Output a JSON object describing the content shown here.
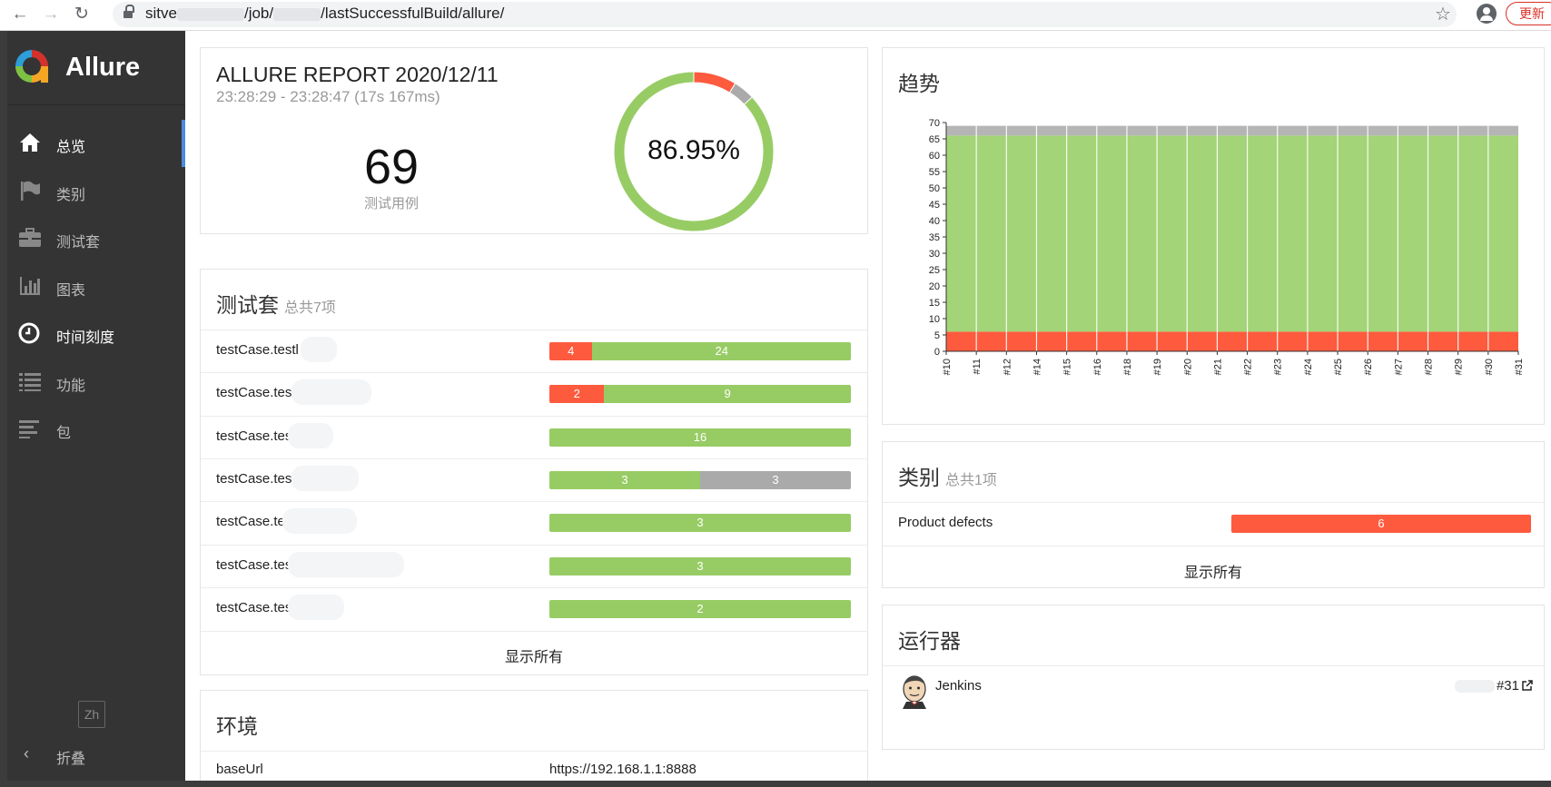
{
  "browser": {
    "url_prefix": "sitve",
    "url_middle": "/job/",
    "url_suffix": "/lastSuccessfulBuild/allure/",
    "update_label": "更新"
  },
  "brand": {
    "name": "Allure"
  },
  "nav": [
    {
      "label": "总览",
      "icon": "home-icon"
    },
    {
      "label": "类别",
      "icon": "flag-icon"
    },
    {
      "label": "测试套",
      "icon": "briefcase-icon"
    },
    {
      "label": "图表",
      "icon": "bar-chart-icon"
    },
    {
      "label": "时间刻度",
      "icon": "clock-icon"
    },
    {
      "label": "功能",
      "icon": "list-icon"
    },
    {
      "label": "包",
      "icon": "align-left-icon"
    }
  ],
  "language": "Zh",
  "collapse_label": "折叠",
  "summary": {
    "title": "ALLURE REPORT 2020/12/11",
    "time": "23:28:29 - 23:28:47 (17s 167ms)",
    "count": "69",
    "count_label": "测试用例",
    "percent": "86.95%",
    "donut": {
      "failed": 6,
      "skipped": 3,
      "passed": 60
    },
    "colors": {
      "failed": "#fd5a3e",
      "skipped": "#aaaaaa",
      "passed": "#97cc64"
    }
  },
  "suites": {
    "title": "测试套",
    "subtitle": "总共7项",
    "show_all": "显示所有",
    "rows": [
      {
        "name": "testCase.testl",
        "failed": 4,
        "passed": 24,
        "skipped": 0,
        "label_failed": "4",
        "label_passed": "24",
        "label_skipped": ""
      },
      {
        "name": "testCase.tes",
        "failed": 2,
        "passed": 9,
        "skipped": 0,
        "label_failed": "2",
        "label_passed": "9",
        "label_skipped": ""
      },
      {
        "name": "testCase.test_",
        "failed": 0,
        "passed": 16,
        "skipped": 0,
        "label_failed": "",
        "label_passed": "16",
        "label_skipped": ""
      },
      {
        "name": "testCase.test_",
        "failed": 0,
        "passed": 3,
        "skipped": 3,
        "label_failed": "",
        "label_passed": "3",
        "label_skipped": "3"
      },
      {
        "name": "testCase.tes",
        "failed": 0,
        "passed": 3,
        "skipped": 0,
        "label_failed": "",
        "label_passed": "3",
        "label_skipped": ""
      },
      {
        "name": "testCase.test_",
        "failed": 0,
        "passed": 3,
        "skipped": 0,
        "label_failed": "",
        "label_passed": "3",
        "label_skipped": ""
      },
      {
        "name": "testCase.test_",
        "failed": 0,
        "passed": 2,
        "skipped": 0,
        "label_failed": "",
        "label_passed": "2",
        "label_skipped": ""
      }
    ]
  },
  "environment": {
    "title": "环境",
    "rows": [
      {
        "key": "baseUrl",
        "value": "https://192.168.1.1:8888"
      }
    ]
  },
  "trend": {
    "title": "趋势",
    "chart_data": {
      "type": "area",
      "x": [
        "#10",
        "#11",
        "#12",
        "#14",
        "#15",
        "#16",
        "#18",
        "#19",
        "#20",
        "#21",
        "#22",
        "#23",
        "#24",
        "#25",
        "#26",
        "#27",
        "#28",
        "#29",
        "#30",
        "#31"
      ],
      "series": [
        {
          "name": "failed",
          "values": [
            6,
            6,
            6,
            6,
            6,
            6,
            6,
            6,
            6,
            6,
            6,
            6,
            6,
            6,
            6,
            6,
            6,
            6,
            6,
            6
          ]
        },
        {
          "name": "passed",
          "values": [
            60,
            60,
            60,
            60,
            60,
            60,
            60,
            60,
            60,
            60,
            60,
            60,
            60,
            60,
            60,
            60,
            60,
            60,
            60,
            60
          ]
        },
        {
          "name": "skipped",
          "values": [
            3,
            3,
            3,
            3,
            3,
            3,
            3,
            3,
            3,
            3,
            3,
            3,
            3,
            3,
            3,
            3,
            3,
            3,
            3,
            3
          ]
        }
      ],
      "ylim": [
        0,
        70
      ],
      "yticks": [
        0,
        5,
        10,
        15,
        20,
        25,
        30,
        35,
        40,
        45,
        50,
        55,
        60,
        65,
        70
      ],
      "stacked": true,
      "grid": false
    }
  },
  "categories": {
    "title": "类别",
    "subtitle": "总共1项",
    "show_all": "显示所有",
    "rows": [
      {
        "name": "Product defects",
        "value": "6"
      }
    ]
  },
  "executors": {
    "title": "运行器",
    "rows": [
      {
        "name": "Jenkins",
        "build": "#31"
      }
    ]
  }
}
